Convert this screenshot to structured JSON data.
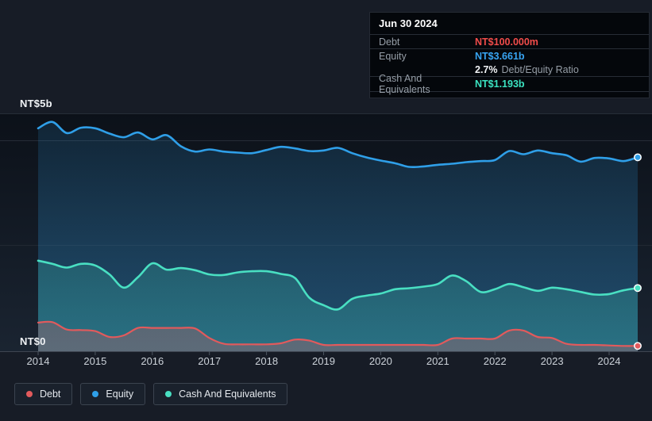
{
  "tooltip": {
    "date": "Jun 30 2024",
    "debt_label": "Debt",
    "debt_value": "NT$100.000m",
    "debt_color": "#f14c4a",
    "equity_label": "Equity",
    "equity_value": "NT$3.661b",
    "equity_color": "#38a5f3",
    "ratio_value": "2.7%",
    "ratio_label": "Debt/Equity Ratio",
    "cash_label": "Cash And Equivalents",
    "cash_value": "NT$1.193b",
    "cash_color": "#3be3c1"
  },
  "y_axis": {
    "top_label": "NT$5b",
    "bottom_label": "NT$0"
  },
  "chart_data": {
    "type": "area",
    "unit": "NT$ billions",
    "ylim": [
      0,
      5
    ],
    "grid": "horizontal",
    "legend_position": "bottom-left",
    "x_tick_labels": [
      "2014",
      "2015",
      "2016",
      "2017",
      "2018",
      "2019",
      "2020",
      "2021",
      "2022",
      "2023",
      "2024"
    ],
    "y_tick_labels": [
      "NT$0",
      "NT$5b"
    ],
    "x": [
      2014,
      2014.25,
      2014.5,
      2014.75,
      2015,
      2015.25,
      2015.5,
      2015.75,
      2016,
      2016.25,
      2016.5,
      2016.75,
      2017,
      2017.25,
      2017.5,
      2017.75,
      2018,
      2018.25,
      2018.5,
      2018.75,
      2019,
      2019.25,
      2019.5,
      2019.75,
      2020,
      2020.25,
      2020.5,
      2020.75,
      2021,
      2021.25,
      2021.5,
      2021.75,
      2022,
      2022.25,
      2022.5,
      2022.75,
      2023,
      2023.25,
      2023.5,
      2023.75,
      2024,
      2024.25,
      2024.5
    ],
    "series": [
      {
        "name": "Debt",
        "color": "#e25a5c",
        "values": [
          0.54,
          0.55,
          0.41,
          0.4,
          0.38,
          0.27,
          0.3,
          0.44,
          0.44,
          0.44,
          0.44,
          0.43,
          0.25,
          0.14,
          0.13,
          0.13,
          0.13,
          0.15,
          0.22,
          0.2,
          0.12,
          0.12,
          0.12,
          0.12,
          0.12,
          0.12,
          0.12,
          0.12,
          0.12,
          0.24,
          0.24,
          0.24,
          0.24,
          0.39,
          0.39,
          0.27,
          0.25,
          0.14,
          0.12,
          0.12,
          0.11,
          0.1,
          0.1
        ]
      },
      {
        "name": "Equity",
        "color": "#2f9fe8",
        "values": [
          4.21,
          4.33,
          4.12,
          4.22,
          4.21,
          4.11,
          4.04,
          4.13,
          4.0,
          4.08,
          3.87,
          3.77,
          3.81,
          3.77,
          3.75,
          3.74,
          3.8,
          3.86,
          3.83,
          3.78,
          3.79,
          3.84,
          3.74,
          3.66,
          3.6,
          3.55,
          3.48,
          3.49,
          3.52,
          3.54,
          3.57,
          3.59,
          3.61,
          3.78,
          3.72,
          3.79,
          3.74,
          3.7,
          3.58,
          3.65,
          3.64,
          3.59,
          3.661
        ]
      },
      {
        "name": "Cash And Equivalents",
        "color": "#49dfc2",
        "values": [
          1.71,
          1.65,
          1.58,
          1.65,
          1.62,
          1.45,
          1.2,
          1.4,
          1.66,
          1.54,
          1.57,
          1.53,
          1.45,
          1.44,
          1.49,
          1.51,
          1.51,
          1.46,
          1.38,
          1.01,
          0.87,
          0.79,
          0.99,
          1.05,
          1.09,
          1.17,
          1.19,
          1.22,
          1.27,
          1.43,
          1.32,
          1.12,
          1.17,
          1.27,
          1.21,
          1.14,
          1.2,
          1.17,
          1.12,
          1.07,
          1.08,
          1.15,
          1.193
        ]
      }
    ]
  }
}
